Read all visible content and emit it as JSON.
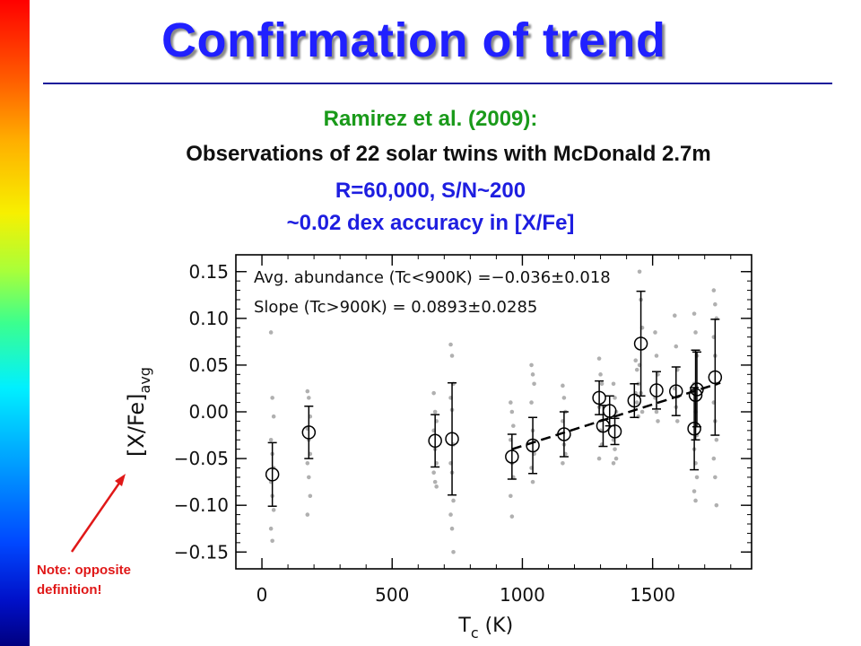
{
  "slide": {
    "title": "Confirmation of trend",
    "subtitle_source": "Ramirez et al. (2009):",
    "subtitle_observations": "Observations of 22 solar twins with McDonald 2.7m",
    "subtitle_resolution": "R=60,000, S/N~200",
    "subtitle_accuracy": "~0.02 dex accuracy in [X/Fe]",
    "note_line1": "Note: opposite",
    "note_line2": "definition!",
    "colors": {
      "title": "#2020ff",
      "source": "#1a9a1a",
      "specs": "#1e1ee0",
      "note": "#e01818"
    }
  },
  "chart_data": {
    "type": "scatter",
    "xlabel": "T",
    "xlabel_sub": "c",
    "xlabel_unit": "(K)",
    "ylabel": "[X/Fe]",
    "ylabel_sub": "avg",
    "xlim": [
      -100,
      1880
    ],
    "ylim": [
      -0.168,
      0.168
    ],
    "xticks": [
      0,
      500,
      1000,
      1500
    ],
    "xtick_labels": [
      "0",
      "500",
      "1000",
      "1500"
    ],
    "yticks": [
      0.15,
      0.1,
      0.05,
      0.0,
      -0.05,
      -0.1,
      -0.15
    ],
    "ytick_labels": [
      "0.15",
      "0.10",
      "0.05",
      "0.00",
      "−0.05",
      "−0.10",
      "−0.15"
    ],
    "annotations": [
      "Avg. abundance (Tc<900K) =−0.036±0.018",
      "Slope (Tc>900K) = 0.0893±0.0285"
    ],
    "means": [
      {
        "x": 40,
        "y": -0.067,
        "err": 0.034
      },
      {
        "x": 180,
        "y": -0.022,
        "err": 0.028
      },
      {
        "x": 665,
        "y": -0.031,
        "err": 0.028
      },
      {
        "x": 730,
        "y": -0.029,
        "err": 0.06
      },
      {
        "x": 960,
        "y": -0.048,
        "err": 0.024
      },
      {
        "x": 1040,
        "y": -0.036,
        "err": 0.03
      },
      {
        "x": 1160,
        "y": -0.024,
        "err": 0.024
      },
      {
        "x": 1295,
        "y": 0.015,
        "err": 0.018
      },
      {
        "x": 1310,
        "y": -0.015,
        "err": 0.022
      },
      {
        "x": 1335,
        "y": 0.001,
        "err": 0.016
      },
      {
        "x": 1355,
        "y": -0.021,
        "err": 0.014
      },
      {
        "x": 1430,
        "y": 0.012,
        "err": 0.018
      },
      {
        "x": 1455,
        "y": 0.073,
        "err": 0.056
      },
      {
        "x": 1515,
        "y": 0.023,
        "err": 0.02
      },
      {
        "x": 1590,
        "y": 0.022,
        "err": 0.026
      },
      {
        "x": 1660,
        "y": -0.018,
        "err": 0.044
      },
      {
        "x": 1665,
        "y": 0.018,
        "err": 0.048
      },
      {
        "x": 1670,
        "y": 0.024,
        "err": 0.04
      },
      {
        "x": 1740,
        "y": 0.037,
        "err": 0.062
      }
    ],
    "fit_line": {
      "x": [
        960,
        1760
      ],
      "y": [
        -0.04,
        0.031
      ]
    },
    "individual_points": [
      {
        "x": 40,
        "y": [
          0.085,
          0.015,
          -0.005,
          -0.03,
          -0.045,
          -0.06,
          -0.075,
          -0.09,
          -0.105,
          -0.125,
          -0.138
        ]
      },
      {
        "x": 180,
        "y": [
          0.022,
          0.015,
          -0.005,
          -0.018,
          -0.03,
          -0.045,
          -0.055,
          -0.07,
          -0.09,
          -0.11
        ]
      },
      {
        "x": 665,
        "y": [
          0.02,
          0.0,
          -0.01,
          -0.02,
          -0.04,
          -0.055,
          -0.065,
          -0.075,
          -0.08
        ]
      },
      {
        "x": 730,
        "y": [
          0.072,
          0.06,
          0.03,
          0.015,
          0.002,
          -0.035,
          -0.055,
          -0.065,
          -0.095,
          -0.11,
          -0.125,
          -0.15
        ]
      },
      {
        "x": 960,
        "y": [
          0.01,
          0.0,
          -0.015,
          -0.03,
          -0.055,
          -0.07,
          -0.09,
          -0.112
        ]
      },
      {
        "x": 1040,
        "y": [
          0.05,
          0.04,
          0.03,
          0.01,
          -0.02,
          -0.045,
          -0.06,
          -0.075
        ]
      },
      {
        "x": 1160,
        "y": [
          0.028,
          0.015,
          0.0,
          -0.01,
          -0.035,
          -0.045,
          -0.055
        ]
      },
      {
        "x": 1300,
        "y": [
          0.057,
          0.04,
          0.03,
          0.005,
          -0.02,
          -0.035,
          -0.05
        ]
      },
      {
        "x": 1355,
        "y": [
          0.03,
          0.015,
          0.0,
          -0.03,
          -0.04,
          -0.05,
          -0.055
        ]
      },
      {
        "x": 1440,
        "y": [
          0.055,
          0.045,
          0.03,
          0.02,
          0.01,
          -0.005
        ]
      },
      {
        "x": 1455,
        "y": [
          0.15,
          0.12,
          0.09,
          0.05,
          0.02,
          0.0
        ]
      },
      {
        "x": 1515,
        "y": [
          0.085,
          0.06,
          0.04,
          0.015,
          0.0,
          -0.01
        ]
      },
      {
        "x": 1590,
        "y": [
          0.103,
          0.07,
          0.045,
          0.025,
          0.005,
          -0.01
        ]
      },
      {
        "x": 1665,
        "y": [
          0.105,
          0.085,
          0.06,
          0.03,
          0.0,
          -0.025,
          -0.04,
          -0.055,
          -0.07,
          -0.085,
          -0.095
        ]
      },
      {
        "x": 1740,
        "y": [
          0.13,
          0.115,
          0.1,
          0.08,
          0.06,
          0.03,
          0.01,
          -0.01,
          -0.03,
          -0.05,
          -0.07,
          -0.1
        ]
      }
    ]
  }
}
